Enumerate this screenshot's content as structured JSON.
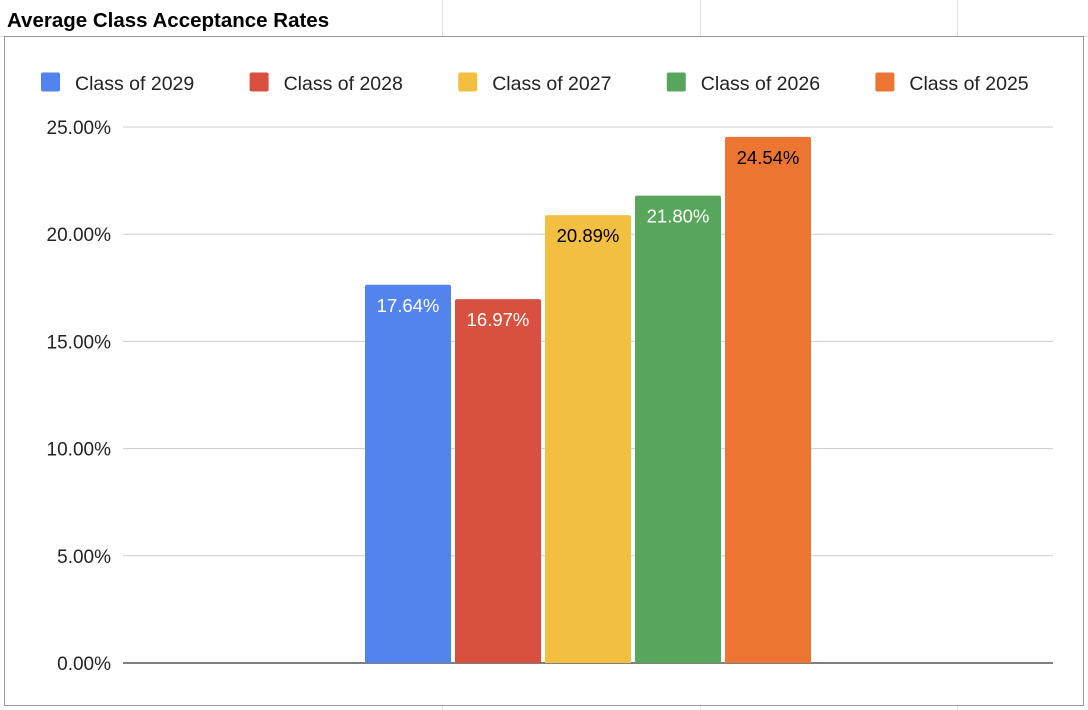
{
  "chart_data": {
    "type": "bar",
    "title": "Average Class Acceptance Rates",
    "xlabel": "",
    "ylabel": "",
    "ylim": [
      0,
      25
    ],
    "y_ticks": [
      0,
      5,
      10,
      15,
      20,
      25
    ],
    "y_tick_labels": [
      "0.00%",
      "5.00%",
      "10.00%",
      "15.00%",
      "20.00%",
      "25.00%"
    ],
    "grid": true,
    "legend_position": "top",
    "series": [
      {
        "name": "Class of 2029",
        "value": 17.64,
        "label": "17.64%",
        "color": "#5384ed",
        "label_color": "#ffffff"
      },
      {
        "name": "Class of 2028",
        "value": 16.97,
        "label": "16.97%",
        "color": "#d85140",
        "label_color": "#ffffff"
      },
      {
        "name": "Class of 2027",
        "value": 20.89,
        "label": "20.89%",
        "color": "#f2bf41",
        "label_color": "#000000"
      },
      {
        "name": "Class of 2026",
        "value": 21.8,
        "label": "21.80%",
        "color": "#58a65c",
        "label_color": "#ffffff"
      },
      {
        "name": "Class of 2025",
        "value": 24.54,
        "label": "24.54%",
        "color": "#ec7631",
        "label_color": "#000000"
      }
    ]
  }
}
